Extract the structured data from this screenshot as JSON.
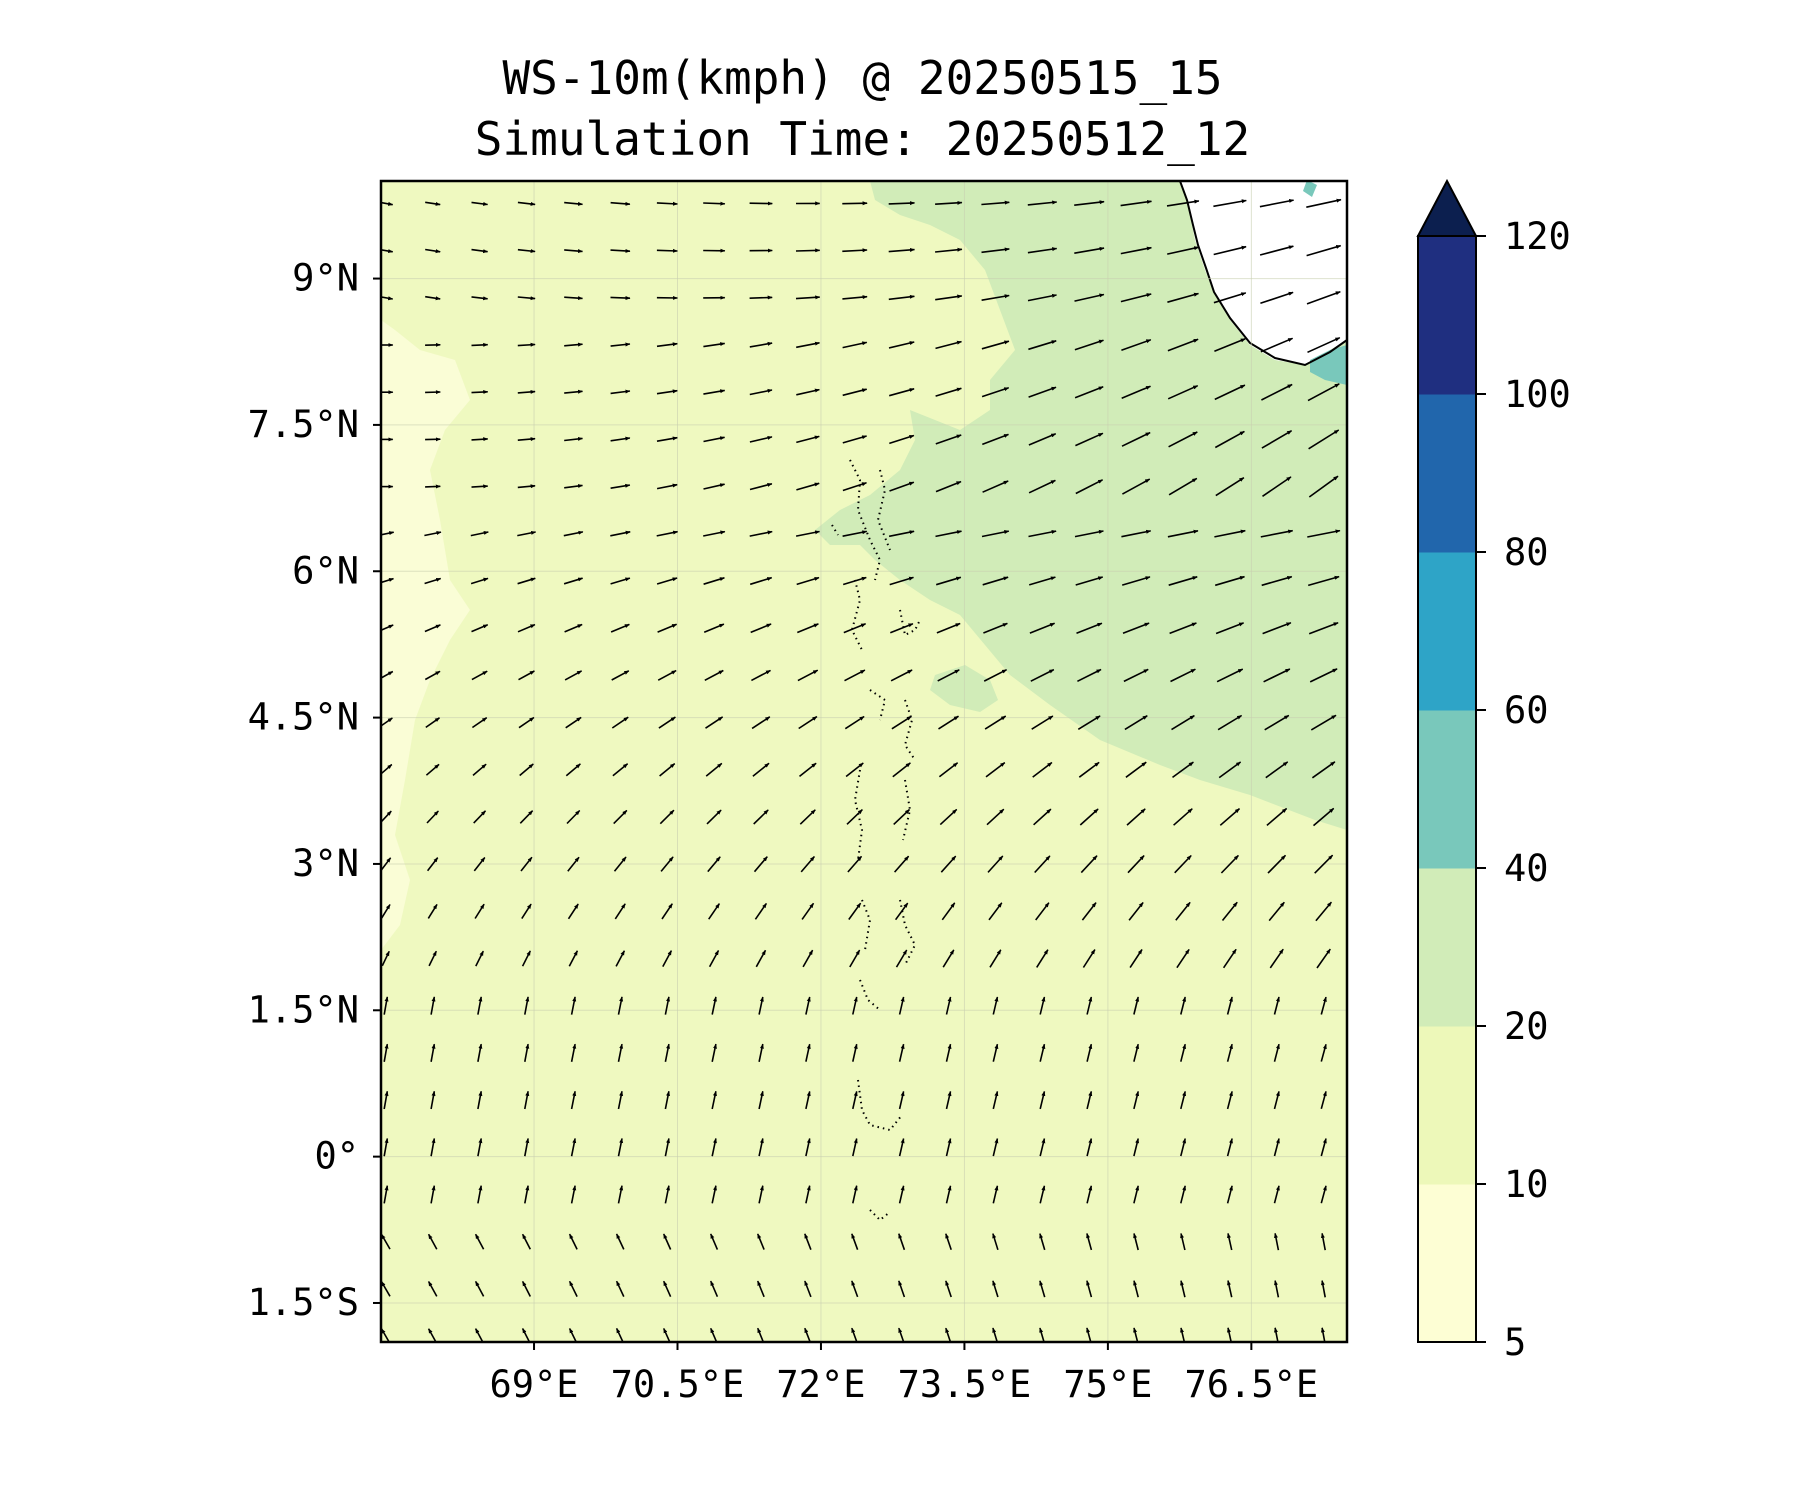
{
  "title": {
    "line1": "WS-10m(kmph) @ 20250515_15",
    "line2": "Simulation Time: 20250512_12"
  },
  "map": {
    "lon_range": [
      67.4,
      77.5
    ],
    "lat_range": [
      -1.9,
      10.0
    ],
    "lat_ticks": [
      {
        "value": 9.0,
        "label": "9°N"
      },
      {
        "value": 7.5,
        "label": "7.5°N"
      },
      {
        "value": 6.0,
        "label": "6°N"
      },
      {
        "value": 4.5,
        "label": "4.5°N"
      },
      {
        "value": 3.0,
        "label": "3°N"
      },
      {
        "value": 1.5,
        "label": "1.5°N"
      },
      {
        "value": 0.0,
        "label": "0°"
      },
      {
        "value": -1.5,
        "label": "1.5°S"
      }
    ],
    "lon_ticks": [
      {
        "value": 69.0,
        "label": "69°E"
      },
      {
        "value": 70.5,
        "label": "70.5°E"
      },
      {
        "value": 72.0,
        "label": "72°E"
      },
      {
        "value": 73.5,
        "label": "73.5°E"
      },
      {
        "value": 75.0,
        "label": "75°E"
      },
      {
        "value": 76.5,
        "label": "76.5°E"
      }
    ],
    "background_color": "#eff9c0",
    "low_wind_color": "#fafdd6",
    "moderate_wind_color": "#d1ecb8",
    "strong_wind_color": "#79c8bb",
    "land_color": "#ffffff",
    "vector_color": "#000000",
    "grid": true,
    "regions": [
      {
        "name": "stronger-winds-northeast",
        "level": "20-40",
        "color": "#d1ecb8"
      },
      {
        "name": "weak-winds-west",
        "level": "5-10",
        "color": "#fafdd6"
      },
      {
        "name": "strong-wind-patches-coast",
        "level": "40-60",
        "color": "#79c8bb"
      }
    ],
    "features": [
      "Maldives atolls (dotted)",
      "Southern India coastline"
    ]
  },
  "colorbar": {
    "label": "",
    "extend": "max",
    "levels": [
      {
        "from": 5,
        "to": 10,
        "color": "#fdfed4"
      },
      {
        "from": 10,
        "to": 20,
        "color": "#edf8b9"
      },
      {
        "from": 20,
        "to": 40,
        "color": "#d1ecb8"
      },
      {
        "from": 40,
        "to": 60,
        "color": "#79c8bb"
      },
      {
        "from": 60,
        "to": 80,
        "color": "#2ea4c7"
      },
      {
        "from": 80,
        "to": 100,
        "color": "#2166ac"
      },
      {
        "from": 100,
        "to": 120,
        "color": "#1f2f80"
      }
    ],
    "extend_color": "#0c1f4f",
    "tick_labels": [
      "5",
      "10",
      "20",
      "40",
      "60",
      "80",
      "100",
      "120"
    ]
  }
}
